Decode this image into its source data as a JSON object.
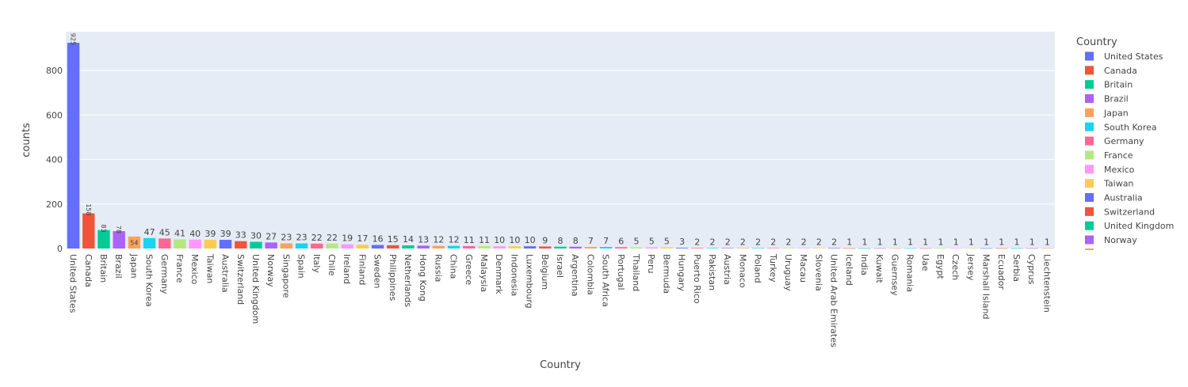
{
  "chart_data": {
    "type": "bar",
    "xlabel": "Country",
    "ylabel": "counts",
    "ylim": [
      0,
      975
    ],
    "yticks": [
      0,
      200,
      400,
      600,
      800
    ],
    "grid": true,
    "legend_title": "Country",
    "legend_position": "right",
    "categories": [
      "United States",
      "Canada",
      "Britain",
      "Brazil",
      "Japan",
      "South Korea",
      "Germany",
      "France",
      "Mexico",
      "Taiwan",
      "Australia",
      "Switzerland",
      "United Kingdom",
      "Norway",
      "Singapore",
      "Spain",
      "Italy",
      "Chile",
      "Ireland",
      "Finland",
      "Sweden",
      "Philippines",
      "Netherlands",
      "Hong Kong",
      "Russia",
      "China",
      "Greece",
      "Malaysia",
      "Denmark",
      "Indonesia",
      "Luxembourg",
      "Belgium",
      "Israel",
      "Argentina",
      "Colombia",
      "South Africa",
      "Portugal",
      "Thailand",
      "Peru",
      "Bermuda",
      "Hungary",
      "Puerto Rico",
      "Pakistan",
      "Austria",
      "Monaco",
      "Poland",
      "Turkey",
      "Uruguay",
      "Macau",
      "Slovenia",
      "United Arab Emirates",
      "Iceland",
      "India",
      "Kuwait",
      "Guernsey",
      "Romania",
      "Uae",
      "Egypt",
      "Czech",
      "Jersey",
      "Marshall Island",
      "Ecuador",
      "Serbia",
      "Cyprus",
      "Liechtenstein"
    ],
    "values": [
      925,
      158,
      83,
      78,
      54,
      47,
      45,
      41,
      40,
      39,
      39,
      33,
      30,
      27,
      23,
      23,
      22,
      22,
      19,
      17,
      16,
      15,
      14,
      13,
      12,
      12,
      11,
      11,
      10,
      10,
      10,
      9,
      8,
      8,
      7,
      7,
      6,
      5,
      5,
      5,
      3,
      2,
      2,
      2,
      2,
      2,
      2,
      2,
      2,
      2,
      2,
      1,
      1,
      1,
      1,
      1,
      1,
      1,
      1,
      1,
      1,
      1,
      1,
      1,
      1
    ],
    "value_labels": [
      "925",
      "158",
      "83",
      "78",
      "54",
      "47",
      "45",
      "41",
      "40",
      "39",
      "39",
      "33",
      "30",
      "27",
      "23",
      "23",
      "22",
      "22",
      "19",
      "17",
      "16",
      "15",
      "14",
      "13",
      "12",
      "12",
      "11",
      "11",
      "10",
      "10",
      "10",
      "9",
      "8",
      "8",
      "7",
      "7",
      "6",
      "5",
      "5",
      "5",
      "3",
      "2",
      "2",
      "2",
      "2",
      "2",
      "2",
      "2",
      "2",
      "2",
      "2",
      "1",
      "1",
      "1",
      "1",
      "1",
      "1",
      "1",
      "1",
      "1",
      "1",
      "1",
      "1",
      "1",
      "1"
    ],
    "colors": [
      "#636efa",
      "#EF553B",
      "#00cc96",
      "#ab63fa",
      "#FFA15A",
      "#19d3f3",
      "#FF6692",
      "#B6E880",
      "#FF97FF",
      "#FECB52"
    ],
    "legend_items": [
      "United States",
      "Canada",
      "Britain",
      "Brazil",
      "Japan",
      "South Korea",
      "Germany",
      "France",
      "Mexico",
      "Taiwan",
      "Australia",
      "Switzerland",
      "United Kingdom",
      "Norway"
    ]
  }
}
